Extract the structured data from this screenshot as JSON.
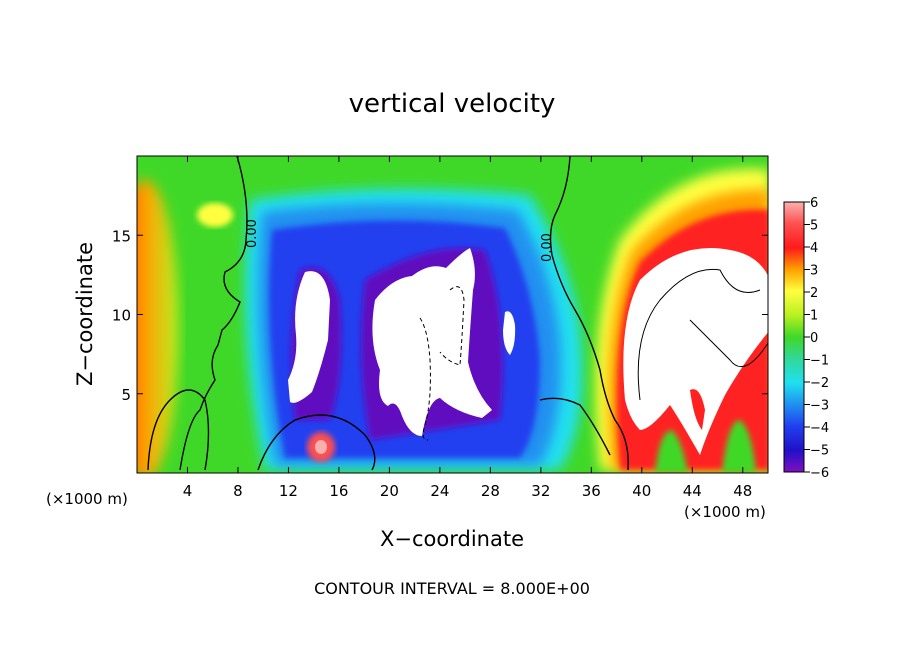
{
  "chart_data": {
    "type": "heatmap",
    "title": "vertical velocity",
    "xlabel": "X−coordinate",
    "ylabel": "Z−coordinate",
    "x_unit_label_left": "(×1000 m)",
    "x_unit_label_right": "(×1000 m)",
    "footer": "CONTOUR INTERVAL = 8.000E+00",
    "xlim": [
      0,
      50
    ],
    "ylim": [
      0,
      20
    ],
    "x_ticks": [
      4,
      8,
      12,
      16,
      20,
      24,
      28,
      32,
      36,
      40,
      44,
      48
    ],
    "y_ticks": [
      5,
      10,
      15
    ],
    "colorbar": {
      "range": [
        -6,
        6
      ],
      "ticks": [
        6,
        5,
        4,
        3,
        2,
        1,
        0,
        -1,
        -2,
        -3,
        -4,
        -5,
        -6
      ],
      "tick_labels": [
        "6",
        "5",
        "4",
        "3",
        "2",
        "1",
        "0",
        "−1",
        "−2",
        "−3",
        "−4",
        "−5",
        "−6"
      ]
    },
    "contour_labels": [
      "0.00",
      "0.00"
    ],
    "features": [
      {
        "type": "updraft_cores",
        "side": "right",
        "x_range": [
          38,
          50
        ],
        "z_range": [
          0,
          16
        ],
        "max_value": ">6"
      },
      {
        "type": "downdraft_cores",
        "center_x": 21,
        "x_range": [
          10,
          32
        ],
        "z_range": [
          1,
          18
        ],
        "min_value": "<-6"
      },
      {
        "type": "updraft",
        "side": "left",
        "x_range": [
          0,
          4
        ],
        "z_range": [
          0,
          16
        ]
      },
      {
        "type": "updraft_bubble",
        "x": 14.5,
        "z": 1.8
      },
      {
        "type": "zero_contour",
        "x_range": [
          8,
          10
        ],
        "label": "0.00"
      },
      {
        "type": "zero_contour",
        "x_range": [
          32,
          35
        ],
        "label": "0.00"
      }
    ]
  }
}
